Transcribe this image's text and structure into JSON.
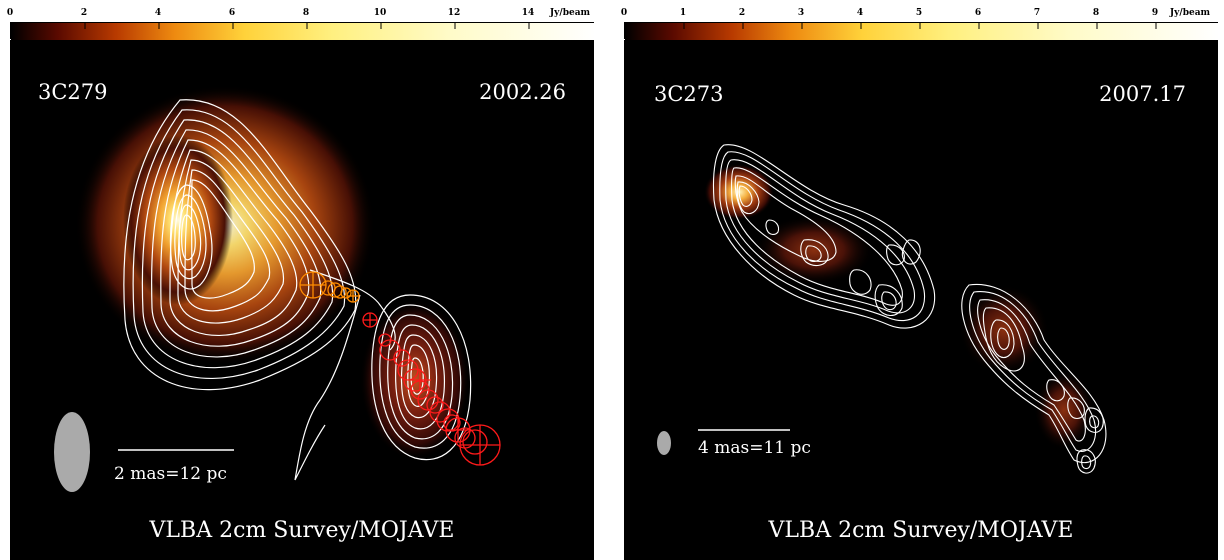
{
  "panels": [
    {
      "source": "3C279",
      "epoch": "2002.26",
      "survey": "VLBA 2cm Survey/MOJAVE",
      "scale_bar": "2 mas=12 pc",
      "colorbar_ticks": [
        "0",
        "2",
        "4",
        "6",
        "8",
        "10",
        "12",
        "14"
      ],
      "colorbar_unit": "Jy/beam",
      "colorbar_max": 15.8
    },
    {
      "source": "3C273",
      "epoch": "2007.17",
      "survey": "VLBA 2cm Survey/MOJAVE",
      "scale_bar": "4 mas=11 pc",
      "colorbar_ticks": [
        "0",
        "1",
        "2",
        "3",
        "4",
        "5",
        "6",
        "7",
        "8",
        "9"
      ],
      "colorbar_unit": "Jy/beam",
      "colorbar_max": 10.0
    }
  ],
  "colors": {
    "background": "#000000",
    "contour": "#ffffff",
    "inner_components": "#ff8c00",
    "outer_components": "#ff1a1a",
    "beam": "#aaaaaa"
  }
}
